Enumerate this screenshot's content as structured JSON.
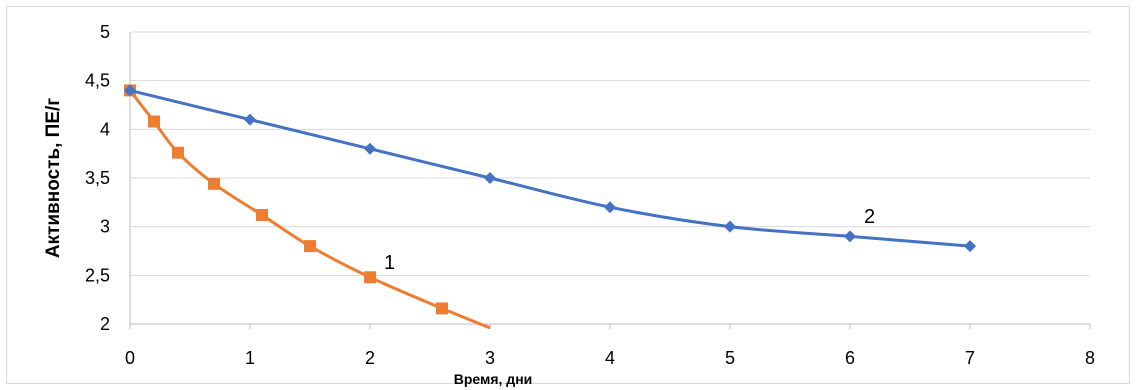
{
  "chart_data": {
    "type": "line",
    "xlabel": "Время, дни",
    "ylabel": "Активность, ПЕ/г",
    "xlim": [
      0,
      8
    ],
    "ylim": [
      2,
      5
    ],
    "x_ticks": [
      "0",
      "1",
      "2",
      "3",
      "4",
      "5",
      "6",
      "7",
      "8"
    ],
    "y_ticks": [
      "2",
      "2,5",
      "3",
      "3,5",
      "4",
      "4,5",
      "5"
    ],
    "grid": "horizontal",
    "series": [
      {
        "label": "1",
        "color": "#ed7d31",
        "marker": "square",
        "x": [
          0,
          0.2,
          0.4,
          0.7,
          1.1,
          1.5,
          2.0,
          2.6,
          3.0
        ],
        "y": [
          4.4,
          4.08,
          3.76,
          3.44,
          3.12,
          2.8,
          2.48,
          2.16,
          1.96
        ],
        "markers_shown": 8
      },
      {
        "label": "2",
        "color": "#4472c4",
        "marker": "diamond",
        "x": [
          0,
          1,
          2,
          3,
          4,
          5,
          6,
          7
        ],
        "y": [
          4.4,
          4.1,
          3.8,
          3.5,
          3.2,
          3.0,
          2.9,
          2.8
        ]
      }
    ]
  }
}
